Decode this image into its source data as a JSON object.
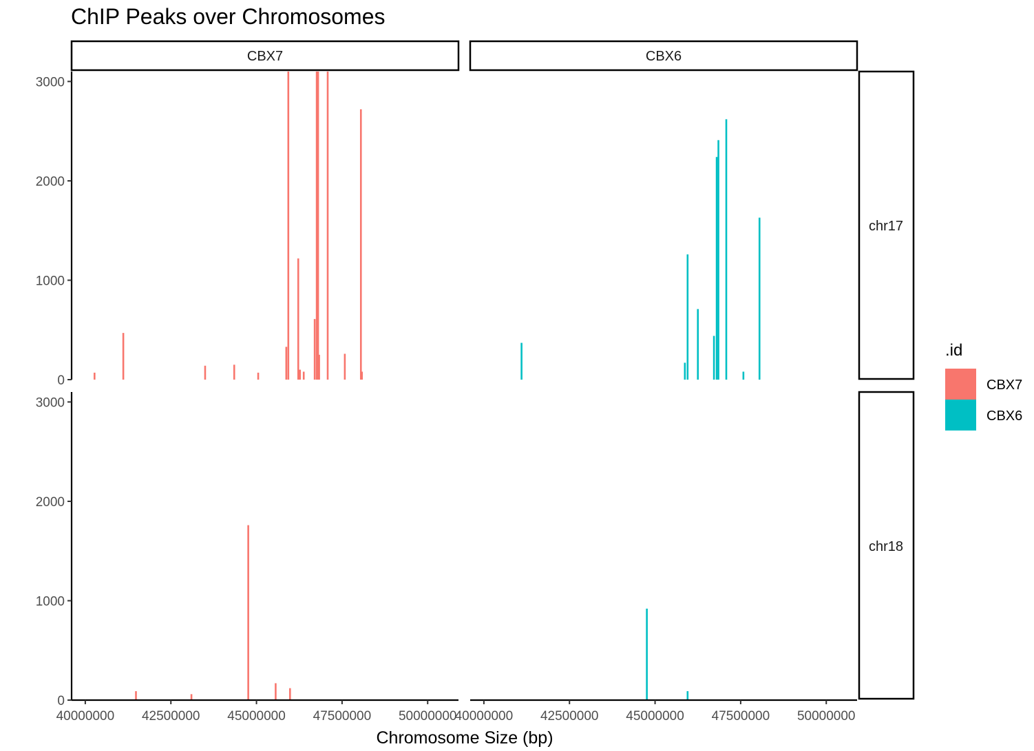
{
  "title": "ChIP Peaks over Chromosomes",
  "colors": {
    "CBX7": "#F8766D",
    "CBX6": "#00BFC4"
  },
  "chart_data": {
    "type": "bar",
    "title": "ChIP Peaks over Chromosomes",
    "xlabel": "Chromosome Size (bp)",
    "ylabel": "",
    "xlim": [
      39600000,
      50900000
    ],
    "ylim": [
      0,
      3100
    ],
    "x_ticks": [
      40000000,
      42500000,
      45000000,
      47500000,
      50000000
    ],
    "x_tick_labels": [
      "40000000",
      "42500000",
      "45000000",
      "47500000",
      "50000000"
    ],
    "y_ticks": [
      0,
      1000,
      2000,
      3000
    ],
    "y_tick_labels": [
      "0",
      "1000",
      "2000",
      "3000"
    ],
    "col_facets": [
      "CBX7",
      "CBX6"
    ],
    "row_facets": [
      "chr17",
      "chr18"
    ],
    "legend": {
      "title": ".id",
      "entries": [
        "CBX7",
        "CBX6"
      ],
      "position": "right"
    },
    "grid": false,
    "panels": [
      {
        "id": "CBX7",
        "chrom": "chr17",
        "color": "#F8766D",
        "peaks": [
          {
            "x": 40270000,
            "y": 70
          },
          {
            "x": 41110000,
            "y": 470
          },
          {
            "x": 43500000,
            "y": 140
          },
          {
            "x": 44350000,
            "y": 150
          },
          {
            "x": 45050000,
            "y": 70
          },
          {
            "x": 45870000,
            "y": 330
          },
          {
            "x": 45930000,
            "y": 3100
          },
          {
            "x": 46220000,
            "y": 1220
          },
          {
            "x": 46270000,
            "y": 100
          },
          {
            "x": 46380000,
            "y": 80
          },
          {
            "x": 46700000,
            "y": 610
          },
          {
            "x": 46760000,
            "y": 3100
          },
          {
            "x": 46800000,
            "y": 3100
          },
          {
            "x": 46830000,
            "y": 250
          },
          {
            "x": 47080000,
            "y": 3100
          },
          {
            "x": 47580000,
            "y": 260
          },
          {
            "x": 48050000,
            "y": 2720
          },
          {
            "x": 48080000,
            "y": 80
          }
        ]
      },
      {
        "id": "CBX6",
        "chrom": "chr17",
        "color": "#00BFC4",
        "peaks": [
          {
            "x": 41100000,
            "y": 370
          },
          {
            "x": 45870000,
            "y": 170
          },
          {
            "x": 45950000,
            "y": 1260
          },
          {
            "x": 46250000,
            "y": 710
          },
          {
            "x": 46720000,
            "y": 440
          },
          {
            "x": 46800000,
            "y": 2240
          },
          {
            "x": 46850000,
            "y": 2410
          },
          {
            "x": 47080000,
            "y": 2620
          },
          {
            "x": 47580000,
            "y": 80
          },
          {
            "x": 48050000,
            "y": 1630
          }
        ]
      },
      {
        "id": "CBX7",
        "chrom": "chr18",
        "color": "#F8766D",
        "peaks": [
          {
            "x": 41480000,
            "y": 90
          },
          {
            "x": 43100000,
            "y": 60
          },
          {
            "x": 44760000,
            "y": 1760
          },
          {
            "x": 45560000,
            "y": 170
          },
          {
            "x": 45980000,
            "y": 120
          }
        ]
      },
      {
        "id": "CBX6",
        "chrom": "chr18",
        "color": "#00BFC4",
        "peaks": [
          {
            "x": 44760000,
            "y": 920
          },
          {
            "x": 45950000,
            "y": 90
          }
        ]
      }
    ]
  }
}
